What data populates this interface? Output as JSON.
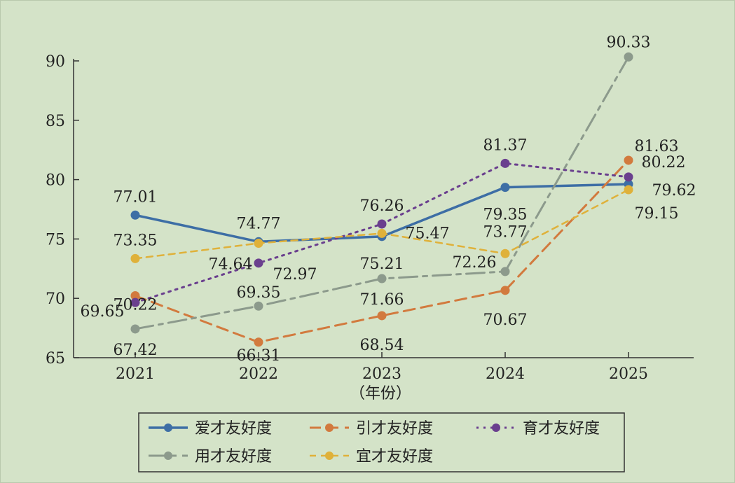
{
  "chart_data": {
    "type": "line",
    "title": "",
    "xlabel": "（年份）",
    "ylabel": "",
    "categories": [
      "2021",
      "2022",
      "2023",
      "2024",
      "2025"
    ],
    "y_ticks": [
      "65",
      "70",
      "75",
      "80",
      "85",
      "90"
    ],
    "ylim": [
      65,
      90
    ],
    "grid": false,
    "legend_position": "bottom",
    "series": [
      {
        "name": "爱才友好度",
        "color": "#3d6ea5",
        "dash": "solid",
        "values": [
          77.01,
          74.77,
          75.21,
          79.35,
          79.62
        ]
      },
      {
        "name": "引才友好度",
        "color": "#d27a3e",
        "dash": "dash",
        "values": [
          70.22,
          66.31,
          68.54,
          70.67,
          81.63
        ]
      },
      {
        "name": "育才友好度",
        "color": "#6a3f8e",
        "dash": "dot",
        "values": [
          69.65,
          72.97,
          76.26,
          81.37,
          80.22
        ]
      },
      {
        "name": "用才友好度",
        "color": "#8c9a8c",
        "dash": "dashdot",
        "values": [
          67.42,
          69.35,
          71.66,
          72.26,
          90.33
        ]
      },
      {
        "name": "宜才友好度",
        "color": "#dfb13a",
        "dash": "shortdash",
        "values": [
          73.35,
          74.64,
          75.47,
          73.77,
          79.15
        ]
      }
    ]
  }
}
